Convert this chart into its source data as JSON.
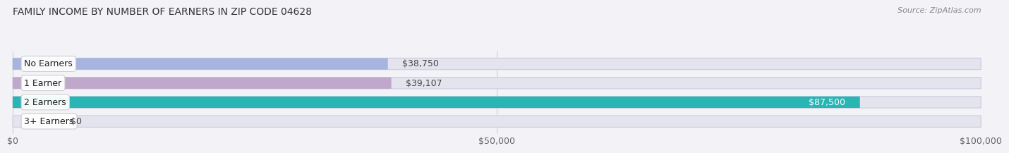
{
  "title": "FAMILY INCOME BY NUMBER OF EARNERS IN ZIP CODE 04628",
  "source": "Source: ZipAtlas.com",
  "categories": [
    "No Earners",
    "1 Earner",
    "2 Earners",
    "3+ Earners"
  ],
  "values": [
    38750,
    39107,
    87500,
    0
  ],
  "bar_colors": [
    "#a8b4e0",
    "#c0a8cc",
    "#2ab5b5",
    "#b0bce0"
  ],
  "label_colors": [
    "#444444",
    "#444444",
    "#ffffff",
    "#444444"
  ],
  "value_labels": [
    "$38,750",
    "$39,107",
    "$87,500",
    "$0"
  ],
  "xlim": [
    0,
    100000
  ],
  "xticks": [
    0,
    50000,
    100000
  ],
  "xticklabels": [
    "$0",
    "$50,000",
    "$100,000"
  ],
  "background_color": "#f2f2f7",
  "bar_background": "#e4e4ee",
  "title_fontsize": 10,
  "source_fontsize": 8,
  "label_fontsize": 9,
  "value_fontsize": 9,
  "bar_height": 0.6
}
